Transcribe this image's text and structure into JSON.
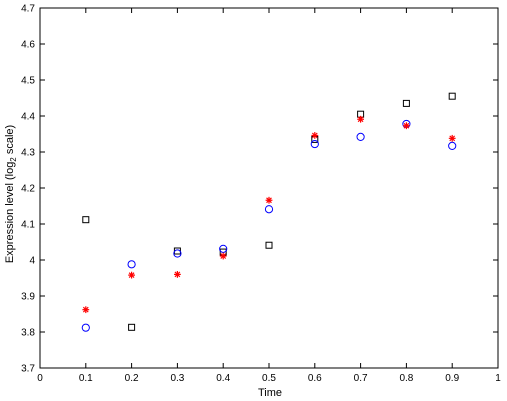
{
  "chart_data": {
    "type": "scatter",
    "title": "",
    "xlabel": "Time",
    "ylabel_main": "Expression level (log",
    "ylabel_sub": "2",
    "ylabel_end": " scale)",
    "xlim": [
      0,
      1
    ],
    "ylim": [
      3.7,
      4.7
    ],
    "x_ticks": [
      0,
      0.1,
      0.2,
      0.3,
      0.4,
      0.5,
      0.6,
      0.7,
      0.8,
      0.9,
      1
    ],
    "x_tick_labels": [
      "0",
      "0.1",
      "0.2",
      "0.3",
      "0.4",
      "0.5",
      "0.6",
      "0.7",
      "0.8",
      "0.9",
      "1"
    ],
    "y_ticks": [
      3.7,
      3.8,
      3.9,
      4.0,
      4.1,
      4.2,
      4.3,
      4.4,
      4.5,
      4.6,
      4.7
    ],
    "y_tick_labels": [
      "3.7",
      "3.8",
      "3.9",
      "4",
      "4.1",
      "4.2",
      "4.3",
      "4.4",
      "4.5",
      "4.6",
      "4.7"
    ],
    "grid": false,
    "series": [
      {
        "marker": "square",
        "color": "#000000",
        "x": [
          0.1,
          0.2,
          0.3,
          0.4,
          0.5,
          0.6,
          0.7,
          0.8,
          0.9
        ],
        "y": [
          4.112,
          3.813,
          4.025,
          4.022,
          4.041,
          4.335,
          4.405,
          4.435,
          4.455
        ]
      },
      {
        "marker": "circle",
        "color": "#0000ff",
        "x": [
          0.1,
          0.2,
          0.3,
          0.4,
          0.5,
          0.6,
          0.7,
          0.8,
          0.9
        ],
        "y": [
          3.812,
          3.988,
          4.018,
          4.031,
          4.141,
          4.322,
          4.342,
          4.378,
          4.317
        ]
      },
      {
        "marker": "asterisk",
        "color": "#ff0000",
        "x": [
          0.1,
          0.2,
          0.3,
          0.4,
          0.5,
          0.6,
          0.7,
          0.8,
          0.9
        ],
        "y": [
          3.862,
          3.958,
          3.96,
          4.011,
          4.166,
          4.346,
          4.391,
          4.373,
          4.338
        ]
      }
    ]
  }
}
